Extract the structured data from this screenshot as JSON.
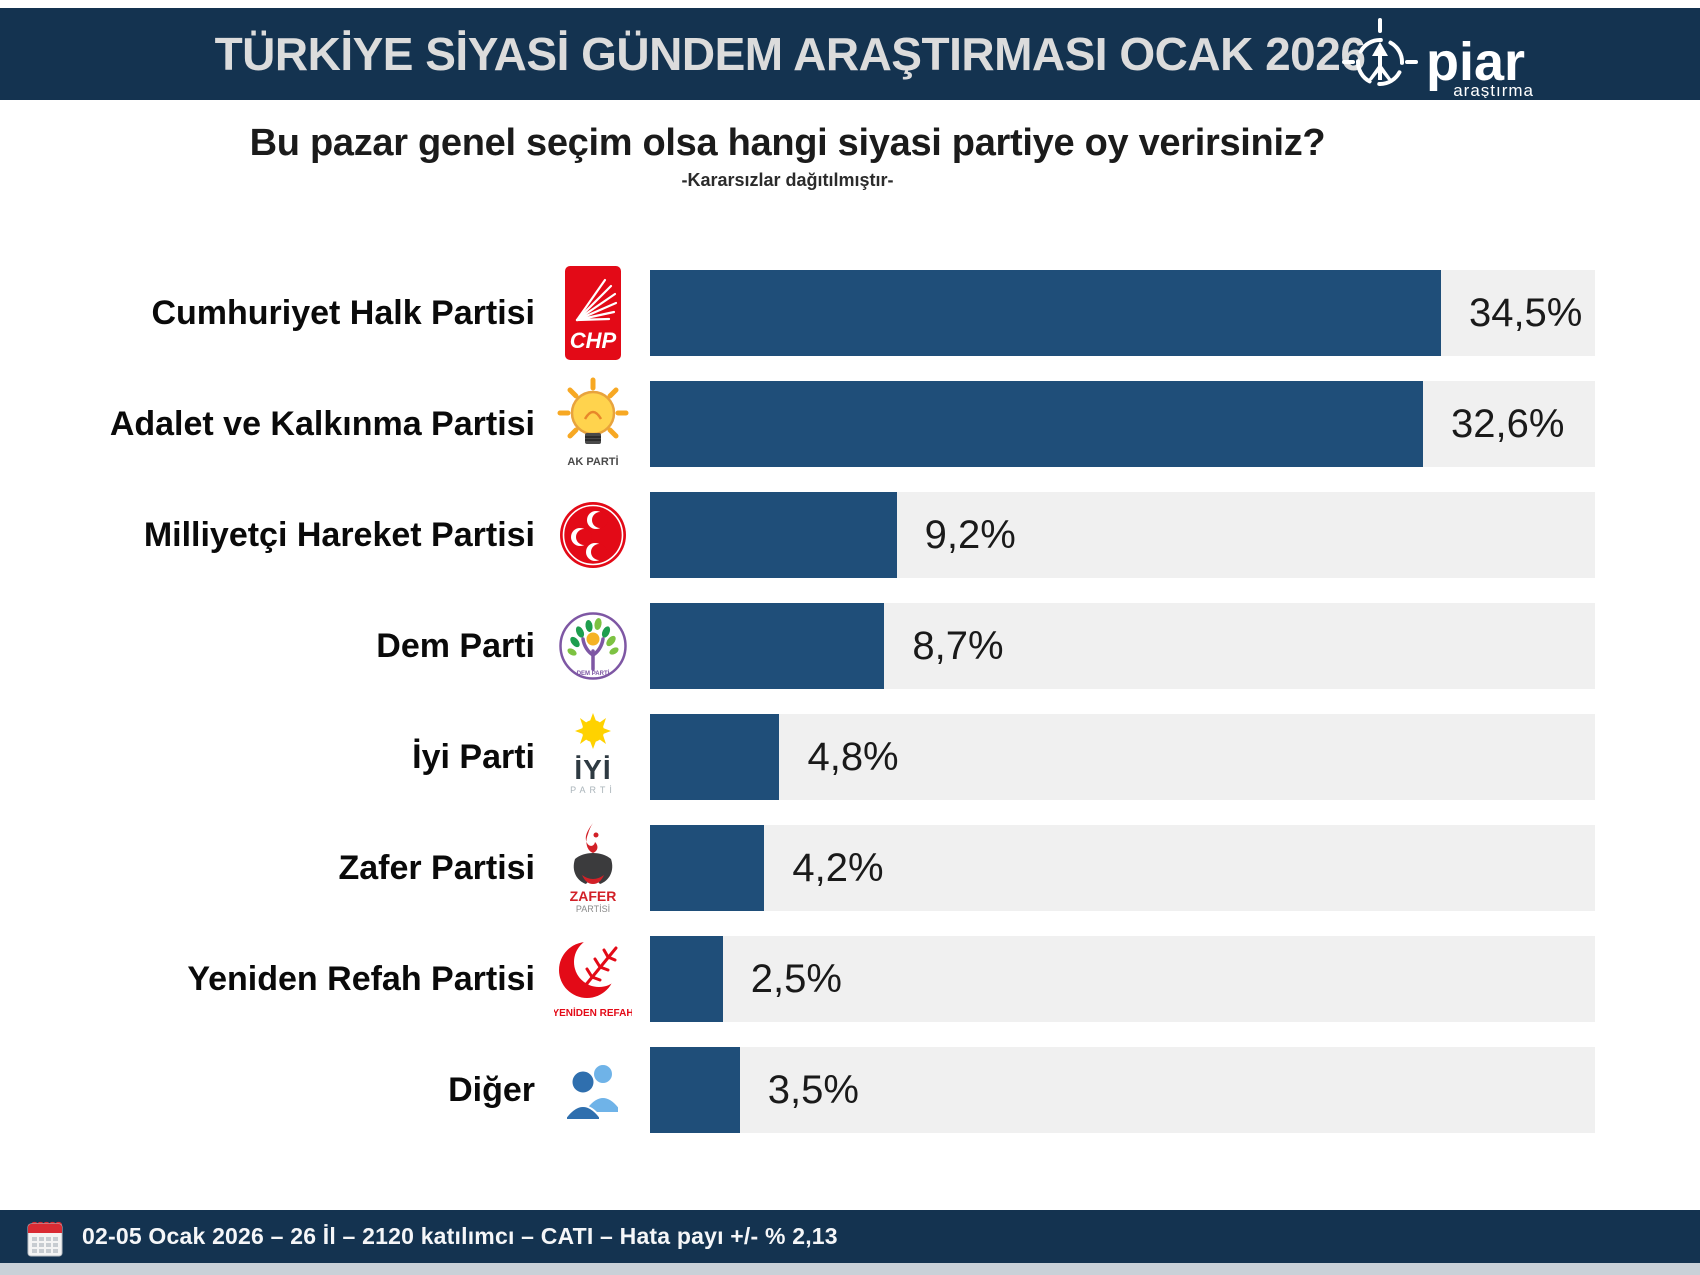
{
  "header": {
    "title": "TÜRKİYE SİYASİ GÜNDEM ARAŞTIRMASI OCAK 2026",
    "logo": {
      "name": "piar-logo",
      "text": "piar",
      "subtext": "araştırma"
    }
  },
  "question": {
    "title": "Bu pazar genel seçim olsa hangi siyasi partiye oy verirsiniz?",
    "note": "-Kararsızlar dağıtılmıştır-"
  },
  "chart_data": {
    "type": "bar",
    "orientation": "horizontal",
    "title": "Bu pazar genel seçim olsa hangi siyasi partiye oy verirsiniz?",
    "subtitle": "-Kararsızlar dağıtılmıştır-",
    "unit": "%",
    "categories": [
      "Cumhuriyet Halk Partisi",
      "Adalet ve Kalkınma Partisi",
      "Milliyetçi Hareket Partisi",
      "Dem Parti",
      "İyi Parti",
      "Zafer Partisi",
      "Yeniden Refah Partisi",
      "Diğer"
    ],
    "values": [
      34.5,
      32.6,
      9.2,
      8.7,
      4.8,
      4.2,
      2.5,
      3.5
    ],
    "value_labels": [
      "34,5%",
      "32,6%",
      "9,2%",
      "8,7%",
      "4,8%",
      "4,2%",
      "2,5%",
      "3,5%"
    ],
    "bar_color": "#1F4E79",
    "track_color": "#F0F0F0",
    "grid": false,
    "legend": false
  },
  "parties": [
    {
      "label": "Cumhuriyet Halk Partisi",
      "value": 34.5,
      "value_label": "34,5%",
      "logo": "chp",
      "bar_track_pct": 83.7
    },
    {
      "label": "Adalet ve Kalkınma Partisi",
      "value": 32.6,
      "value_label": "32,6%",
      "logo": "akp",
      "bar_track_pct": 81.8
    },
    {
      "label": "Milliyetçi Hareket Partisi",
      "value": 9.2,
      "value_label": "9,2%",
      "logo": "mhp",
      "bar_track_pct": 26.1
    },
    {
      "label": "Dem Parti",
      "value": 8.7,
      "value_label": "8,7%",
      "logo": "dem",
      "bar_track_pct": 24.8
    },
    {
      "label": "İyi Parti",
      "value": 4.8,
      "value_label": "4,8%",
      "logo": "iyi",
      "bar_track_pct": 13.7
    },
    {
      "label": "Zafer Partisi",
      "value": 4.2,
      "value_label": "4,2%",
      "logo": "zafer",
      "bar_track_pct": 12.1
    },
    {
      "label": "Yeniden Refah Partisi",
      "value": 2.5,
      "value_label": "2,5%",
      "logo": "yrp",
      "bar_track_pct": 7.7
    },
    {
      "label": "Diğer",
      "value": 3.5,
      "value_label": "3,5%",
      "logo": "diger",
      "bar_track_pct": 9.5
    }
  ],
  "footer": {
    "text": "02-05 Ocak 2026 – 26 İl – 2120 katılımcı – CATI – Hata payı +/- % 2,13",
    "icon": "calendar-icon"
  },
  "colors": {
    "header_bg": "#143350",
    "bar": "#1F4E79",
    "track": "#F0F0F0",
    "footer_bg": "#143350",
    "bottom_strip": "#C9D1D8"
  }
}
